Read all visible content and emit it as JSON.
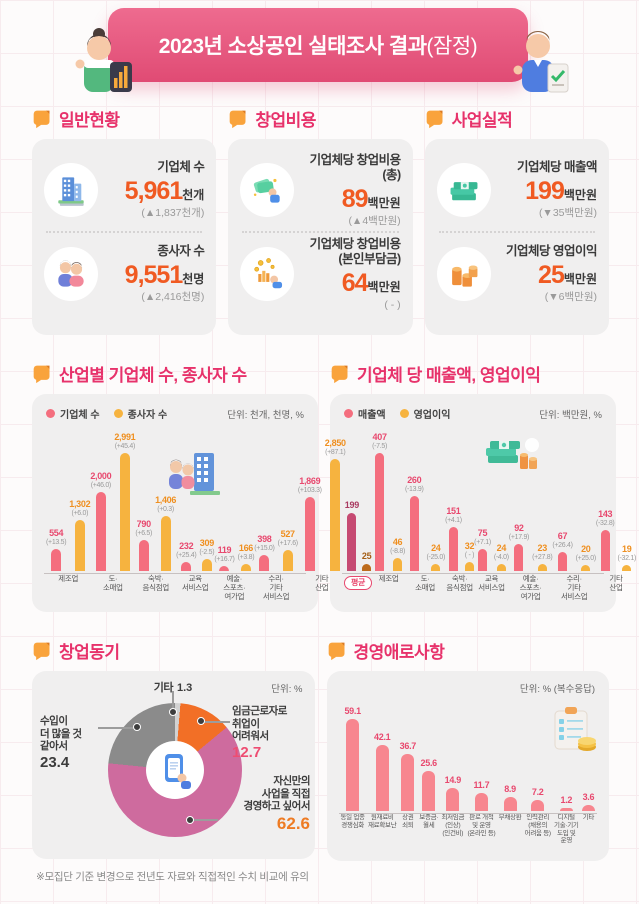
{
  "header": {
    "title_main": "2023년 소상공인 실태조사 결과",
    "title_paren": "(잠정)"
  },
  "stat_sections": [
    {
      "title": "일반현황",
      "items": [
        {
          "icon": "building-icon",
          "label": "기업체 수",
          "value": "5,961",
          "unit": "천개",
          "change": "(▲1,837천개)"
        },
        {
          "icon": "people-icon",
          "label": "종사자 수",
          "value": "9,551",
          "unit": "천명",
          "change": "(▲2,416천명)"
        }
      ]
    },
    {
      "title": "창업비용",
      "items": [
        {
          "icon": "money-hand-icon",
          "label": "기업체당 창업비용\n(총)",
          "value": "89",
          "unit": "백만원",
          "change": "(▲4백만원)"
        },
        {
          "icon": "coins-hand-icon",
          "label": "기업체당 창업비용\n(본인부담금)",
          "value": "64",
          "unit": "백만원",
          "change": "( - )"
        }
      ]
    },
    {
      "title": "사업실적",
      "items": [
        {
          "icon": "cash-stack-icon",
          "label": "기업체당 매출액",
          "value": "199",
          "unit": "백만원",
          "change": "(▼35백만원)"
        },
        {
          "icon": "coin-stack-icon",
          "label": "기업체당 영업이익",
          "value": "25",
          "unit": "백만원",
          "change": "(▼6백만원)"
        }
      ]
    }
  ],
  "chart_data": [
    {
      "id": "industry",
      "type": "bar",
      "title": "산업별 기업체 수, 종사자 수",
      "unit_label": "단위: 천개, 천명, %",
      "legend": [
        {
          "name": "기업체 수",
          "color": "#f46e7e",
          "label_color": "#e8486e"
        },
        {
          "name": "종사자 수",
          "color": "#f6b33f",
          "label_color": "#ef8f1f"
        }
      ],
      "categories": [
        "제조업",
        "도·\n소매업",
        "숙박·\n음식점업",
        "교육\n서비스업",
        "예술·\n스포츠·\n여가업",
        "수리·\n기타\n서비스업",
        "기타\n산업"
      ],
      "series": [
        {
          "name": "기업체 수",
          "values": [
            554,
            2000,
            790,
            232,
            119,
            398,
            1869
          ],
          "changes": [
            "(+13.5)",
            "(+46.0)",
            "(+6.5)",
            "(+25.4)",
            "(+16.7)",
            "(+15.0)",
            "(+103.3)"
          ]
        },
        {
          "name": "종사자 수",
          "values": [
            1302,
            2991,
            1406,
            309,
            166,
            527,
            2850
          ],
          "changes": [
            "(+6.0)",
            "(+45.4)",
            "(+0.3)",
            "(-2.5)",
            "(+3.8)",
            "(+17.6)",
            "(+87.1)"
          ]
        }
      ],
      "ylim": [
        0,
        2991
      ],
      "grid": false,
      "legend_position": "top-left"
    },
    {
      "id": "per_company",
      "type": "bar",
      "title": "기업체 당 매출액, 영업이익",
      "unit_label": "단위: 백만원, %",
      "legend": [
        {
          "name": "매출액",
          "color": "#f46e7e",
          "label_color": "#e8486e"
        },
        {
          "name": "영업이익",
          "color": "#f6b33f",
          "label_color": "#ef8f1f"
        }
      ],
      "average_colors": [
        "#c64a72",
        "#bd6b1c"
      ],
      "average_label_colors": [
        "#a93a60",
        "#a55e15"
      ],
      "categories": [
        "평균",
        "제조업",
        "도·\n소매업",
        "숙박·\n음식점업",
        "교육\n서비스업",
        "예술·\n스포츠·\n여가업",
        "수리·\n기타\n서비스업",
        "기타\n산업"
      ],
      "series": [
        {
          "name": "매출액",
          "values": [
            199,
            407,
            260,
            151,
            75,
            92,
            67,
            143
          ],
          "changes": [
            null,
            "(-7.5)",
            "(-13.9)",
            "(+4.1)",
            "(+7.1)",
            "(+17.9)",
            "(+26.4)",
            "(-32.8)"
          ]
        },
        {
          "name": "영업이익",
          "values": [
            25,
            46,
            24,
            32,
            24,
            23,
            20,
            19
          ],
          "changes": [
            null,
            "(-8.8)",
            "(-25.0)",
            "( - )",
            "(-4.0)",
            "(+27.8)",
            "(+25.0)",
            "(-32.1)"
          ]
        }
      ],
      "ylim": [
        0,
        407
      ],
      "grid": false,
      "legend_position": "top-left"
    },
    {
      "id": "motivation",
      "type": "pie",
      "title": "창업동기",
      "unit_label": "단위: %",
      "slices": [
        {
          "label": "기타",
          "value": 1.3,
          "color": "#d2d2d2",
          "value_color": "#3c3c3c"
        },
        {
          "label": "임금근로자로\n취업이\n어려워서",
          "value": 12.7,
          "color": "#f26f26",
          "value_color": "#ee4d72"
        },
        {
          "label": "자신만의\n사업을 직접\n경영하고 싶어서",
          "value": 62.6,
          "color": "#ce6b9e",
          "value_color": "#ee7b23"
        },
        {
          "label": "수입이\n더 많을 것\n같아서",
          "value": 23.4,
          "color": "#8b8b8b",
          "value_color": "#3c3c3c"
        }
      ]
    },
    {
      "id": "difficulties",
      "type": "bar",
      "title": "경영애로사항",
      "unit_label": "단위: % (복수응답)",
      "bar_color": "#f7868f",
      "label_color": "#e8486e",
      "categories": [
        "동일 업종\n경쟁심화",
        "원재료비\n재료확보난",
        "상권\n쇠퇴",
        "보증금·\n월세",
        "최저임금\n(인상)\n(인건비)",
        "판로 개척\n및 운영\n(온라인 등)",
        "부채상환",
        "인력관리\n(채용의\n어려움 등)",
        "디지털\n기술·기기\n도입 및\n운영",
        "기타"
      ],
      "values": [
        59.1,
        42.1,
        36.7,
        25.6,
        14.9,
        11.7,
        8.9,
        7.2,
        1.2,
        3.6
      ],
      "ylim": [
        0,
        59.1
      ],
      "grid": false
    }
  ],
  "footnote": "※모집단 기준 변경으로 전년도 자료와 직접적인 수치 비교에 유의"
}
